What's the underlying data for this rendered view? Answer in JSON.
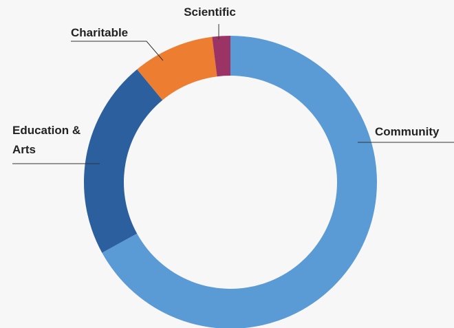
{
  "chart_data": {
    "type": "donut",
    "categories": [
      "Community",
      "Education & Arts",
      "Charitable",
      "Scientific"
    ],
    "values": [
      67,
      22,
      9,
      2
    ],
    "colors": [
      "#5b9bd5",
      "#2c5f9e",
      "#ed7d31",
      "#9b3465"
    ]
  }
}
